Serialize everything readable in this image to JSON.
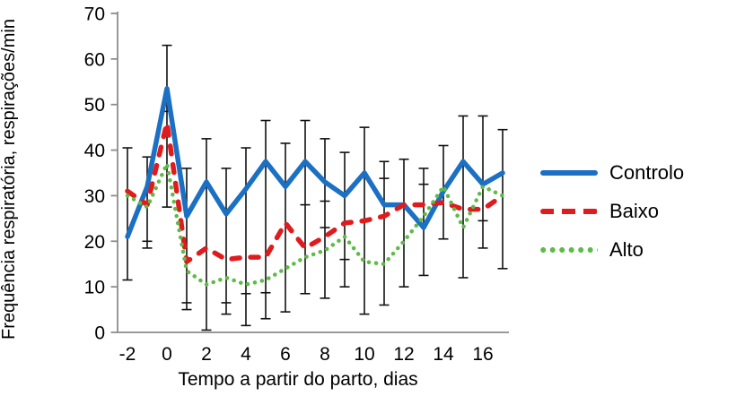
{
  "chart_data": {
    "type": "line",
    "title": "",
    "xlabel": "Tempo a partir do parto, dias",
    "ylabel": "Frequência respiratória, respirações/min",
    "x": [
      -2,
      -1,
      0,
      1,
      2,
      3,
      4,
      5,
      6,
      7,
      8,
      9,
      10,
      11,
      12,
      13,
      14,
      15,
      16,
      17
    ],
    "x_tick_labels": [
      -2,
      0,
      2,
      4,
      6,
      8,
      10,
      12,
      14,
      16
    ],
    "y_ticks": [
      0,
      10,
      20,
      30,
      40,
      50,
      60,
      70
    ],
    "ylim": [
      0,
      70
    ],
    "grid": false,
    "legend_position": "right",
    "axis_color": "#8C8C8C",
    "error_bar_color": "#111111",
    "series": [
      {
        "name": "Controlo",
        "style": "solid",
        "color": "#1C70C4",
        "values": [
          21,
          32,
          53.5,
          25.5,
          33,
          26,
          31.5,
          37.5,
          32,
          37.5,
          33,
          30,
          35,
          28,
          28,
          23,
          31,
          37.5,
          32.5,
          35
        ]
      },
      {
        "name": "Baixo",
        "style": "dashed",
        "color": "#E01B1E",
        "values": [
          31,
          28,
          46,
          15.5,
          18.5,
          16,
          16.5,
          16.5,
          24,
          18.5,
          21,
          24,
          24.5,
          25.5,
          28,
          28,
          28.5,
          27,
          27,
          30
        ]
      },
      {
        "name": "Alto",
        "style": "dotted",
        "color": "#5DBB46",
        "values": [
          30,
          27.5,
          37,
          13.5,
          10.5,
          12,
          10.5,
          11.5,
          14,
          16.5,
          18,
          21,
          15.5,
          15,
          20,
          25.5,
          32,
          23,
          32,
          30
        ]
      }
    ],
    "error_bars": [
      {
        "x": -2,
        "low": 11.5,
        "high": 40.5
      },
      {
        "x": -1,
        "low": 18.5,
        "high": 38.5,
        "caps": [
          20
        ]
      },
      {
        "x": 0,
        "low": 27.5,
        "high": 63,
        "caps": [
          48.5
        ]
      },
      {
        "x": 1,
        "low": 5,
        "high": 36,
        "caps": [
          6.5
        ]
      },
      {
        "x": 2,
        "low": 0.5,
        "high": 42.5
      },
      {
        "x": 3,
        "low": 4,
        "high": 36,
        "caps": [
          6.5
        ]
      },
      {
        "x": 4,
        "low": 1.5,
        "high": 40.5,
        "caps": [
          8.5
        ]
      },
      {
        "x": 5,
        "low": 3,
        "high": 46.5,
        "caps": [
          8.7
        ]
      },
      {
        "x": 6,
        "low": 4.5,
        "high": 41.5
      },
      {
        "x": 7,
        "low": 8.5,
        "high": 46.5,
        "caps": [
          28
        ]
      },
      {
        "x": 8,
        "low": 7.5,
        "high": 42.5,
        "caps": [
          28.8,
          23
        ]
      },
      {
        "x": 9,
        "low": 10,
        "high": 39.5,
        "caps": [
          16
        ]
      },
      {
        "x": 10,
        "low": 4,
        "high": 45
      },
      {
        "x": 11,
        "low": 6,
        "high": 37.5,
        "caps": [
          33.8
        ]
      },
      {
        "x": 12,
        "low": 10,
        "high": 38
      },
      {
        "x": 13,
        "low": 12.5,
        "high": 36,
        "caps": [
          32.5
        ]
      },
      {
        "x": 14,
        "low": 20.5,
        "high": 41
      },
      {
        "x": 15,
        "low": 12,
        "high": 47.5
      },
      {
        "x": 16,
        "low": 18.5,
        "high": 47.5,
        "caps": [
          24.5
        ]
      },
      {
        "x": 17,
        "low": 14,
        "high": 44.5
      }
    ]
  },
  "legend": {
    "items": [
      {
        "label": "Controlo"
      },
      {
        "label": "Baixo"
      },
      {
        "label": "Alto"
      }
    ]
  }
}
